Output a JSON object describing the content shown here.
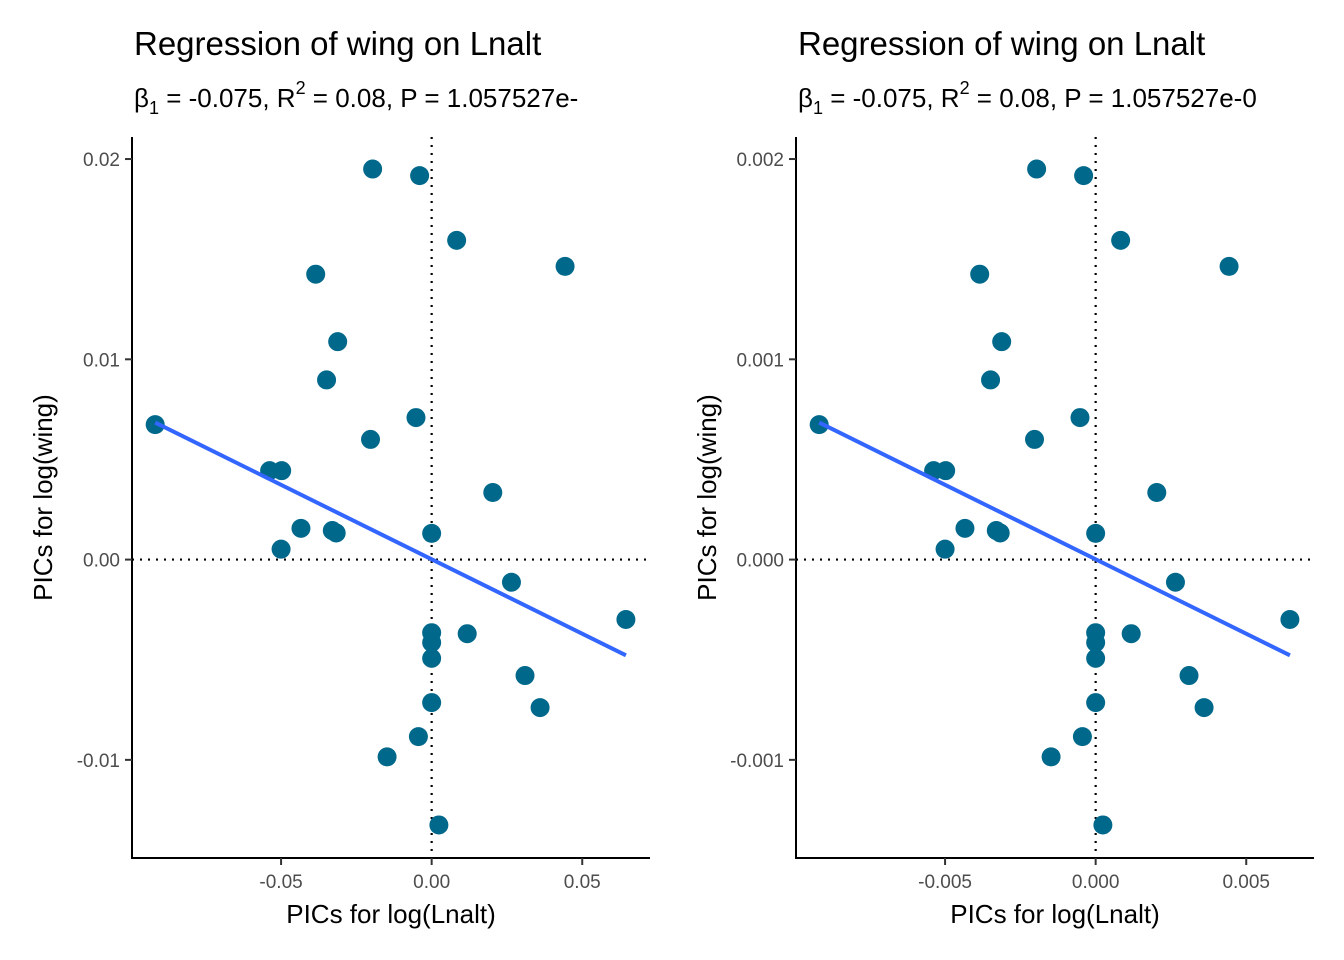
{
  "chart_data": [
    {
      "type": "scatter",
      "title": "Regression of wing on Lnalt",
      "subtitle": {
        "beta_symbol": "β",
        "beta_sub": "1",
        "beta_value": " = -0.075,  R",
        "r2_sup": "2",
        "rest": " = 0.08,  P = 1.057527e-"
      },
      "xlabel": "PICs for log(Lnalt)",
      "ylabel": "PICs for log(wing)",
      "xlim": [
        -0.0995,
        0.0725
      ],
      "ylim": [
        -0.0149,
        0.0211
      ],
      "xticks": [
        -0.05,
        0.0,
        0.05
      ],
      "xtick_labels": [
        "-0.05",
        "0.00",
        "0.05"
      ],
      "yticks": [
        -0.01,
        0.0,
        0.01,
        0.02
      ],
      "ytick_labels": [
        "-0.01",
        "0.00",
        "0.01",
        "0.02"
      ],
      "reference_lines": {
        "x": 0,
        "y": 0,
        "style": "dotted"
      },
      "points": {
        "x": [
          -0.0918,
          -0.0538,
          -0.0498,
          -0.0434,
          -0.05,
          -0.0385,
          -0.0312,
          -0.0349,
          -0.033,
          -0.0317,
          -0.0203,
          -0.0196,
          -0.0148,
          -0.0052,
          -0.0044,
          -0.004,
          0.0,
          0.0,
          0.0,
          0.0,
          0.0,
          0.0024,
          0.0083,
          0.0118,
          0.0203,
          0.0265,
          0.031,
          0.036,
          0.0443,
          0.0645
        ],
        "y": [
          0.00674,
          0.00444,
          0.00444,
          0.00156,
          0.00052,
          0.01425,
          0.01088,
          0.00897,
          0.00145,
          0.00133,
          0.006,
          0.0195,
          -0.00985,
          0.00709,
          -0.00884,
          0.01917,
          0.00131,
          -0.00365,
          -0.00414,
          -0.00493,
          -0.00714,
          -0.01325,
          0.01594,
          -0.0037,
          0.00335,
          -0.00113,
          -0.00579,
          -0.00739,
          0.01464,
          -0.00299
        ]
      },
      "regression": {
        "x": [
          -0.0918,
          0.0645
        ],
        "y": [
          0.00684,
          -0.00478
        ]
      },
      "colors": {
        "points": "#00688b",
        "line": "#3366ff"
      }
    },
    {
      "type": "scatter",
      "title": "Regression of wing on Lnalt",
      "subtitle": {
        "beta_symbol": "β",
        "beta_sub": "1",
        "beta_value": " = -0.075,  R",
        "r2_sup": "2",
        "rest": " = 0.08,  P = 1.057527e-0"
      },
      "xlabel": "PICs for log(Lnalt)",
      "ylabel": "PICs for log(wing)",
      "xlim": [
        -0.00995,
        0.00725
      ],
      "ylim": [
        -0.00149,
        0.00211
      ],
      "xticks": [
        -0.005,
        0.0,
        0.005
      ],
      "xtick_labels": [
        "-0.005",
        "0.000",
        "0.005"
      ],
      "yticks": [
        -0.001,
        0.0,
        0.001,
        0.002
      ],
      "ytick_labels": [
        "-0.001",
        "0.000",
        "0.001",
        "0.002"
      ],
      "reference_lines": {
        "x": 0,
        "y": 0,
        "style": "dotted"
      },
      "points": {
        "x": [
          -0.00918,
          -0.00538,
          -0.00498,
          -0.00434,
          -0.005,
          -0.00385,
          -0.00312,
          -0.00349,
          -0.0033,
          -0.00317,
          -0.00203,
          -0.00196,
          -0.00148,
          -0.00052,
          -0.00044,
          -0.0004,
          0.0,
          0.0,
          0.0,
          0.0,
          0.0,
          0.00024,
          0.00083,
          0.00118,
          0.00203,
          0.00265,
          0.0031,
          0.0036,
          0.00443,
          0.00645
        ],
        "y": [
          0.000674,
          0.000444,
          0.000444,
          0.000156,
          5.2e-05,
          0.001425,
          0.001088,
          0.000897,
          0.000145,
          0.000133,
          0.0006,
          0.00195,
          -0.000985,
          0.000709,
          -0.000884,
          0.001917,
          0.000131,
          -0.000365,
          -0.000414,
          -0.000493,
          -0.000714,
          -0.001325,
          0.001594,
          -0.00037,
          0.000335,
          -0.000113,
          -0.000579,
          -0.000739,
          0.001464,
          -0.000299
        ]
      },
      "regression": {
        "x": [
          -0.00918,
          0.00645
        ],
        "y": [
          0.000684,
          -0.000478
        ]
      },
      "colors": {
        "points": "#00688b",
        "line": "#3366ff"
      }
    }
  ]
}
